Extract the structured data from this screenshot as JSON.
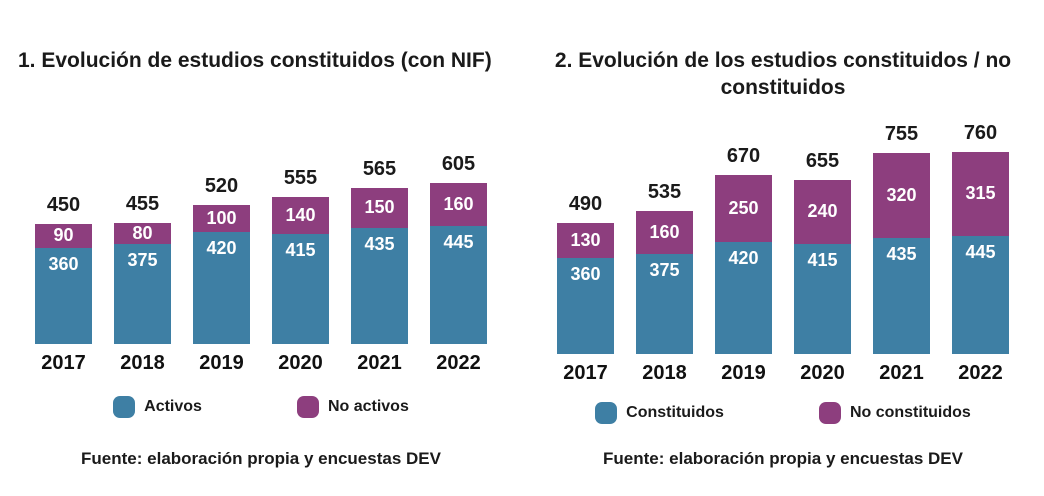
{
  "colors": {
    "series_primary": "#3E7FA4",
    "series_secondary": "#8D3E7E",
    "value_label_text": "#ffffff",
    "text": "#1a1a1a",
    "background": "#ffffff"
  },
  "chart_data": [
    {
      "type": "bar",
      "stacked": true,
      "title": "1. Evolución de estudios constituidos (con NIF)",
      "categories": [
        "2017",
        "2018",
        "2019",
        "2020",
        "2021",
        "2022"
      ],
      "series": [
        {
          "name": "Activos",
          "color": "#3E7FA4",
          "values": [
            360,
            375,
            420,
            415,
            435,
            445
          ]
        },
        {
          "name": "No activos",
          "color": "#8D3E7E",
          "values": [
            90,
            80,
            100,
            140,
            150,
            160
          ]
        }
      ],
      "totals": [
        450,
        455,
        520,
        555,
        565,
        605
      ],
      "xlabel": "",
      "ylabel": "",
      "axes_visible": false,
      "grid": false,
      "legend_position": "bottom",
      "source": "Fuente: elaboración propia y encuestas DEV"
    },
    {
      "type": "bar",
      "stacked": true,
      "title": "2. Evolución de los estudios constituidos / no constituidos",
      "categories": [
        "2017",
        "2018",
        "2019",
        "2020",
        "2021",
        "2022"
      ],
      "series": [
        {
          "name": "Constituidos",
          "color": "#3E7FA4",
          "values": [
            360,
            375,
            420,
            415,
            435,
            445
          ]
        },
        {
          "name": "No constituidos",
          "color": "#8D3E7E",
          "values": [
            130,
            160,
            250,
            240,
            320,
            315
          ]
        }
      ],
      "totals": [
        490,
        535,
        670,
        655,
        755,
        760
      ],
      "xlabel": "",
      "ylabel": "",
      "axes_visible": false,
      "grid": false,
      "legend_position": "bottom",
      "source": "Fuente: elaboración propia y encuestas DEV"
    }
  ]
}
